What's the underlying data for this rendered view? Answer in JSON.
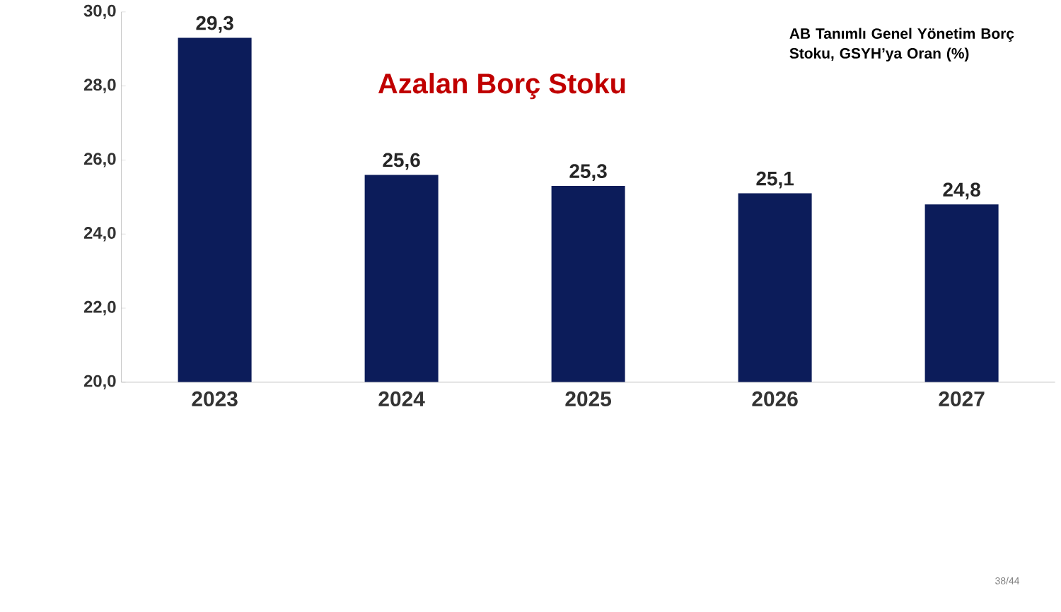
{
  "chart_data": {
    "type": "bar",
    "title": "Azalan Borç Stoku",
    "categories": [
      "2023",
      "2024",
      "2025",
      "2026",
      "2027"
    ],
    "values": [
      29.3,
      25.6,
      25.3,
      25.1,
      24.8
    ],
    "value_labels": [
      "29,3",
      "25,6",
      "25,3",
      "25,1",
      "24,8"
    ],
    "color": "#0c1c5a",
    "ylim": [
      20,
      30
    ],
    "yticks": [
      {
        "value": 20,
        "label": "20,0"
      },
      {
        "value": 22,
        "label": "22,0"
      },
      {
        "value": 24,
        "label": "24,0"
      },
      {
        "value": 26,
        "label": "26,0"
      },
      {
        "value": 28,
        "label": "28,0"
      },
      {
        "value": 30,
        "label": "30,0"
      }
    ],
    "annotations": [
      "AB Tanımlı Genel Yönetim Borç Stoku, GSYH’ya Oran (%)",
      "38/44"
    ],
    "grid": false
  }
}
